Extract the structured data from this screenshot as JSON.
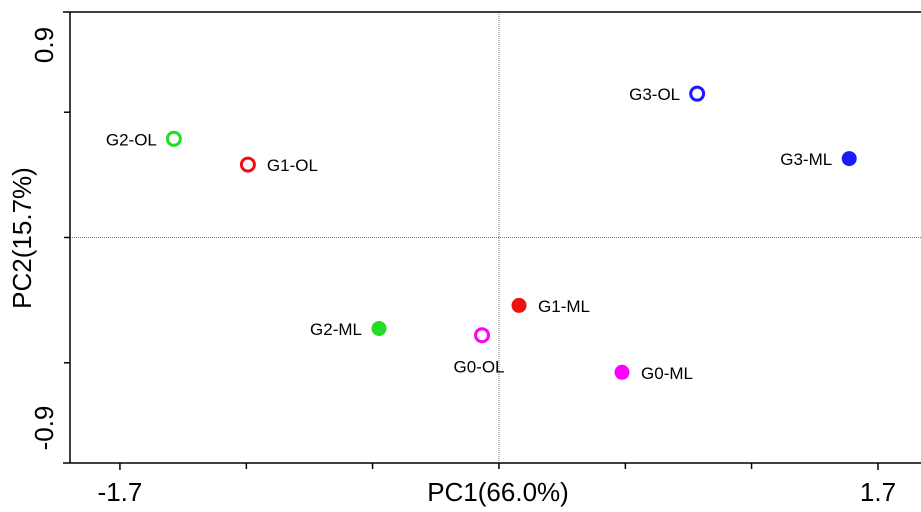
{
  "chart_data": {
    "type": "scatter",
    "x_label": "PC1(66.0%)",
    "y_label": "PC2(15.7%)",
    "xlim": [
      -1.924,
      1.893
    ],
    "ylim": [
      -0.9,
      0.9
    ],
    "xticks": [
      -1.7,
      1.7
    ],
    "yticks": [
      -0.9,
      0.9
    ],
    "x_minor_ticks": [
      -1.133,
      -0.567,
      0,
      0.567,
      1.133
    ],
    "y_minor_ticks": [
      -0.5,
      0,
      0.5
    ],
    "zero_lines": true,
    "series": [
      {
        "name": "G2-OL",
        "color": "#22dd22",
        "filled": false,
        "x": [
          -1.458
        ],
        "values": [
          0.394
        ]
      },
      {
        "name": "G1-OL",
        "color": "#ee1111",
        "filled": false,
        "x": [
          -1.126
        ],
        "values": [
          0.291
        ]
      },
      {
        "name": "G3-OL",
        "color": "#1a1aff",
        "filled": false,
        "x": [
          0.889
        ],
        "values": [
          0.574
        ]
      },
      {
        "name": "G3-ML",
        "color": "#1a1aff",
        "filled": true,
        "x": [
          1.571
        ],
        "values": [
          0.315
        ]
      },
      {
        "name": "G1-ML",
        "color": "#ee1111",
        "filled": true,
        "x": [
          0.09
        ],
        "values": [
          -0.271
        ]
      },
      {
        "name": "G2-ML",
        "color": "#22dd22",
        "filled": true,
        "x": [
          -0.538
        ],
        "values": [
          -0.363
        ]
      },
      {
        "name": "G0-OL",
        "color": "#ff00ff",
        "filled": false,
        "x": [
          -0.076
        ],
        "values": [
          -0.39
        ]
      },
      {
        "name": "G0-ML",
        "color": "#ff00ff",
        "filled": true,
        "x": [
          0.552
        ],
        "values": [
          -0.538
        ]
      }
    ]
  }
}
